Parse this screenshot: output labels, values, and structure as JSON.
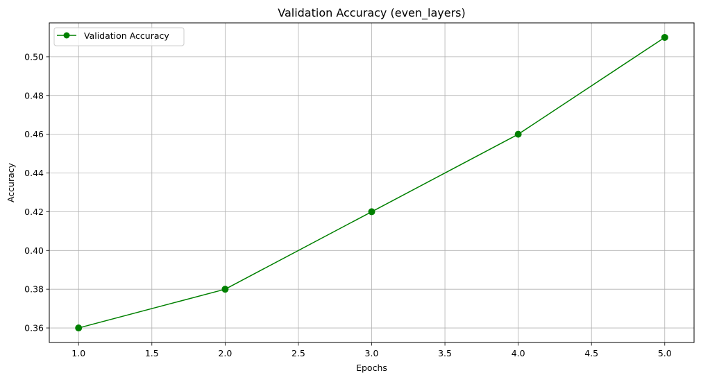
{
  "chart_data": {
    "type": "line",
    "title": "Validation Accuracy (even_layers)",
    "xlabel": "Epochs",
    "ylabel": "Accuracy",
    "xlim": [
      0.8,
      5.2
    ],
    "ylim": [
      0.3525,
      0.5175
    ],
    "x_ticks": [
      1.0,
      1.5,
      2.0,
      2.5,
      3.0,
      3.5,
      4.0,
      4.5,
      5.0
    ],
    "x_tick_labels": [
      "1.0",
      "1.5",
      "2.0",
      "2.5",
      "3.0",
      "3.5",
      "4.0",
      "4.5",
      "5.0"
    ],
    "y_ticks": [
      0.36,
      0.38,
      0.4,
      0.42,
      0.44,
      0.46,
      0.48,
      0.5
    ],
    "y_tick_labels": [
      "0.36",
      "0.38",
      "0.40",
      "0.42",
      "0.44",
      "0.46",
      "0.48",
      "0.50"
    ],
    "grid": true,
    "legend_position": "top-left",
    "series": [
      {
        "name": "Validation Accuracy",
        "color": "#008000",
        "marker": "circle",
        "x": [
          1,
          2,
          3,
          4,
          5
        ],
        "y": [
          0.36,
          0.38,
          0.42,
          0.46,
          0.51
        ]
      }
    ]
  }
}
